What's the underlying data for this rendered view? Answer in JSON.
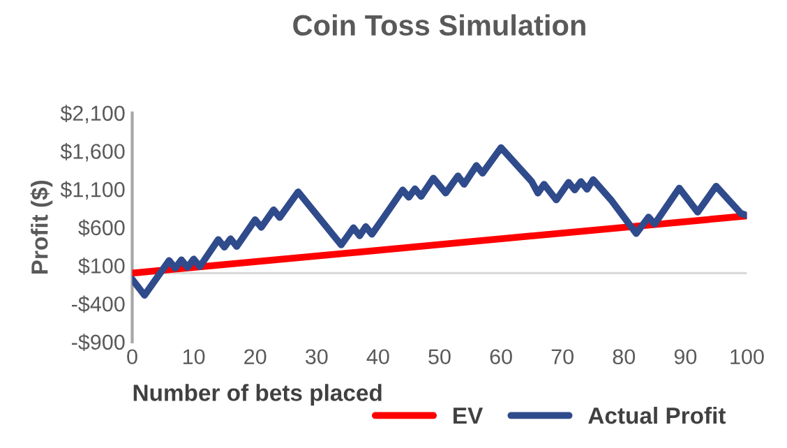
{
  "chart_data": {
    "type": "line",
    "title": "Coin Toss Simulation",
    "xlabel": "Number of bets placed",
    "ylabel": "Profit ($)",
    "xlim": [
      0,
      100
    ],
    "xticks": [
      0,
      10,
      20,
      30,
      40,
      50,
      60,
      70,
      80,
      90,
      100
    ],
    "ylim": [
      -900,
      2100
    ],
    "yticks": [
      {
        "value": -900,
        "label": "-$900"
      },
      {
        "value": -400,
        "label": "-$400"
      },
      {
        "value": 100,
        "label": "$100"
      },
      {
        "value": 600,
        "label": "$600"
      },
      {
        "value": 1100,
        "label": "$1,100"
      },
      {
        "value": 1600,
        "label": "$1,600"
      },
      {
        "value": 2100,
        "label": "$2,100"
      }
    ],
    "grid": false,
    "legend": "bottom",
    "marker": "none",
    "line_style": "solid",
    "ref_lines": [
      {
        "axis": "y",
        "value": 0,
        "color": "#d9d9d9"
      }
    ],
    "series": [
      {
        "name": "EV",
        "color": "#ff0000",
        "x": [
          0,
          100
        ],
        "values": [
          0,
          750
        ]
      },
      {
        "name": "Actual Profit",
        "color": "#2f4b8c",
        "x": [
          0,
          2,
          6,
          7,
          8,
          9,
          10,
          11,
          14,
          15,
          16,
          17,
          20,
          21,
          23,
          24,
          27,
          34,
          36,
          37,
          38,
          39,
          41,
          44,
          45,
          46,
          47,
          49,
          51,
          53,
          54,
          56,
          57,
          60,
          65,
          66,
          67,
          69,
          71,
          72,
          73,
          74,
          75,
          78,
          82,
          84,
          85,
          89,
          92,
          95,
          99,
          100
        ],
        "values": [
          -80,
          -290,
          165,
          65,
          175,
          75,
          185,
          85,
          440,
          340,
          450,
          350,
          700,
          600,
          830,
          730,
          1065,
          370,
          595,
          490,
          610,
          510,
          740,
          1090,
          995,
          1105,
          1005,
          1245,
          1050,
          1275,
          1165,
          1410,
          1310,
          1645,
          1200,
          1050,
          1165,
          960,
          1190,
          1090,
          1200,
          1100,
          1225,
          950,
          520,
          735,
          645,
          1115,
          800,
          1140,
          785,
          755
        ]
      }
    ]
  }
}
